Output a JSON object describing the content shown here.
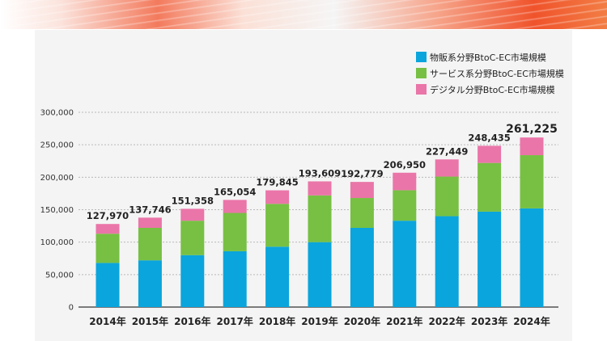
{
  "chart_data": {
    "type": "bar",
    "stacked": true,
    "categories": [
      "2014年",
      "2015年",
      "2016年",
      "2017年",
      "2018年",
      "2019年",
      "2020年",
      "2021年",
      "2022年",
      "2023年",
      "2024年"
    ],
    "series": [
      {
        "name": "物販系分野BtoC-EC市場規模",
        "color": "#0aa5dc",
        "values": [
          68000,
          72000,
          80000,
          86000,
          93000,
          100000,
          122000,
          133000,
          140000,
          147000,
          152000
        ]
      },
      {
        "name": "サービス系分野BtoC-EC市場規模",
        "color": "#77c043",
        "values": [
          45000,
          50000,
          53000,
          59000,
          66000,
          72000,
          46000,
          47000,
          61000,
          75000,
          82000
        ]
      },
      {
        "name": "デジタル分野BtoC-EC市場規模",
        "color": "#ea75a8",
        "values": [
          14970,
          15746,
          18358,
          20054,
          20845,
          21609,
          24779,
          26950,
          26449,
          26435,
          27225
        ]
      }
    ],
    "totals": [
      "127,970",
      "137,746",
      "151,358",
      "165,054",
      "179,845",
      "193,609",
      "192,779",
      "206,950",
      "227,449",
      "248,435",
      "261,225"
    ],
    "totals_values": [
      127970,
      137746,
      151358,
      165054,
      179845,
      193609,
      192779,
      206950,
      227449,
      248435,
      261225
    ],
    "y_ticks": [
      "0",
      "50,000",
      "100,000",
      "150,000",
      "200,000",
      "250,000",
      "300,000"
    ],
    "y_tick_values": [
      0,
      50000,
      100000,
      150000,
      200000,
      250000,
      300000
    ],
    "ylim": [
      0,
      300000
    ],
    "grid": true,
    "legend_position": "top-right",
    "title": "",
    "xlabel": "",
    "ylabel": ""
  }
}
